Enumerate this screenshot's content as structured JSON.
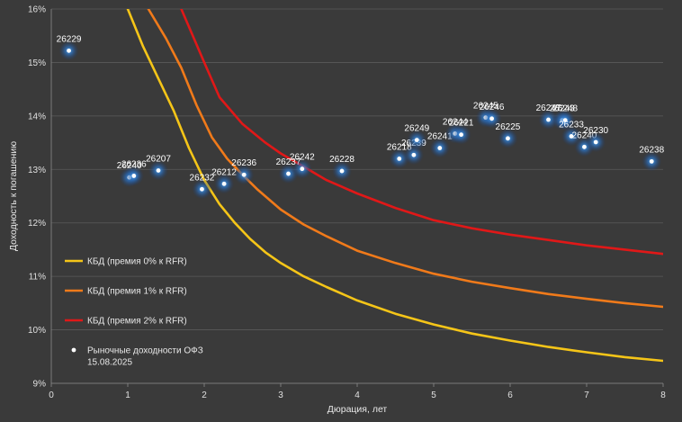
{
  "chart_data": {
    "type": "scatter",
    "xlabel": "Дюрация, лет",
    "ylabel": "Доходность к погашению",
    "xlim": [
      0,
      8
    ],
    "ylim": [
      9,
      16
    ],
    "x_ticks": [
      "0",
      "1",
      "2",
      "3",
      "4",
      "5",
      "6",
      "7",
      "8"
    ],
    "y_ticks": [
      "9%",
      "10%",
      "11%",
      "12%",
      "13%",
      "14%",
      "15%",
      "16%"
    ],
    "grid": "horizontal",
    "legend_position": "bottom-left",
    "series": [
      {
        "name": "КБД (премия 0% к RFR)",
        "kind": "line",
        "color": "#f5c518",
        "x": [
          1.0,
          1.2,
          1.4,
          1.6,
          1.8,
          2.0,
          2.2,
          2.4,
          2.6,
          2.8,
          3.0,
          3.3,
          3.6,
          4.0,
          4.5,
          5.0,
          5.5,
          6.0,
          6.5,
          7.0,
          7.5,
          8.0
        ],
        "y": [
          16.0,
          15.3,
          14.7,
          14.1,
          13.4,
          12.8,
          12.35,
          12.0,
          11.7,
          11.45,
          11.25,
          11.0,
          10.8,
          10.55,
          10.3,
          10.1,
          9.93,
          9.8,
          9.68,
          9.58,
          9.49,
          9.42
        ]
      },
      {
        "name": "КБД (премия 1% к RFR)",
        "kind": "line",
        "color": "#f07a1a",
        "x": [
          1.27,
          1.5,
          1.7,
          1.9,
          2.1,
          2.3,
          2.5,
          2.7,
          3.0,
          3.3,
          3.6,
          4.0,
          4.5,
          5.0,
          5.5,
          6.0,
          6.5,
          7.0,
          7.5,
          8.0
        ],
        "y": [
          16.0,
          15.45,
          14.9,
          14.2,
          13.6,
          13.2,
          12.9,
          12.62,
          12.25,
          11.97,
          11.75,
          11.48,
          11.25,
          11.05,
          10.9,
          10.78,
          10.67,
          10.58,
          10.5,
          10.43
        ]
      },
      {
        "name": "КБД (премия 2% к RFR)",
        "kind": "line",
        "color": "#e01818",
        "x": [
          1.7,
          2.0,
          2.2,
          2.5,
          2.8,
          3.0,
          3.3,
          3.6,
          4.0,
          4.5,
          5.0,
          5.5,
          6.0,
          6.5,
          7.0,
          7.5,
          8.0
        ],
        "y": [
          16.0,
          15.0,
          14.35,
          13.85,
          13.5,
          13.3,
          13.05,
          12.8,
          12.55,
          12.28,
          12.05,
          11.9,
          11.78,
          11.68,
          11.58,
          11.5,
          11.42
        ]
      },
      {
        "name": "Рыночные доходности ОФЗ\n15.08.2025",
        "kind": "scatter",
        "color": "#ffffff",
        "points": [
          {
            "label": "26229",
            "x": 0.23,
            "y": 15.22
          },
          {
            "label": "26240",
            "x": 1.02,
            "y": 12.85
          },
          {
            "label": "26236",
            "x": 1.08,
            "y": 12.88
          },
          {
            "label": "26207",
            "x": 1.4,
            "y": 12.98
          },
          {
            "label": "26232",
            "x": 1.97,
            "y": 12.63
          },
          {
            "label": "26212",
            "x": 2.26,
            "y": 12.73
          },
          {
            "label": "26236",
            "x": 2.52,
            "y": 12.9
          },
          {
            "label": "26237",
            "x": 3.1,
            "y": 12.92
          },
          {
            "label": "26242",
            "x": 3.28,
            "y": 13.01
          },
          {
            "label": "26228",
            "x": 3.8,
            "y": 12.97
          },
          {
            "label": "26218",
            "x": 4.55,
            "y": 13.2
          },
          {
            "label": "26239",
            "x": 4.74,
            "y": 13.27
          },
          {
            "label": "26249",
            "x": 4.78,
            "y": 13.55
          },
          {
            "label": "26241",
            "x": 5.08,
            "y": 13.4
          },
          {
            "label": "26244",
            "x": 5.28,
            "y": 13.67
          },
          {
            "label": "26221",
            "x": 5.36,
            "y": 13.65
          },
          {
            "label": "26245",
            "x": 5.68,
            "y": 13.97
          },
          {
            "label": "26246",
            "x": 5.76,
            "y": 13.95
          },
          {
            "label": "26225",
            "x": 5.97,
            "y": 13.58
          },
          {
            "label": "26247",
            "x": 6.5,
            "y": 13.93
          },
          {
            "label": "26243",
            "x": 6.68,
            "y": 13.92
          },
          {
            "label": "26248",
            "x": 6.72,
            "y": 13.92
          },
          {
            "label": "26233",
            "x": 6.8,
            "y": 13.62
          },
          {
            "label": "26240",
            "x": 6.97,
            "y": 13.42
          },
          {
            "label": "26230",
            "x": 7.12,
            "y": 13.51
          },
          {
            "label": "26238",
            "x": 7.85,
            "y": 13.15
          }
        ]
      }
    ]
  }
}
